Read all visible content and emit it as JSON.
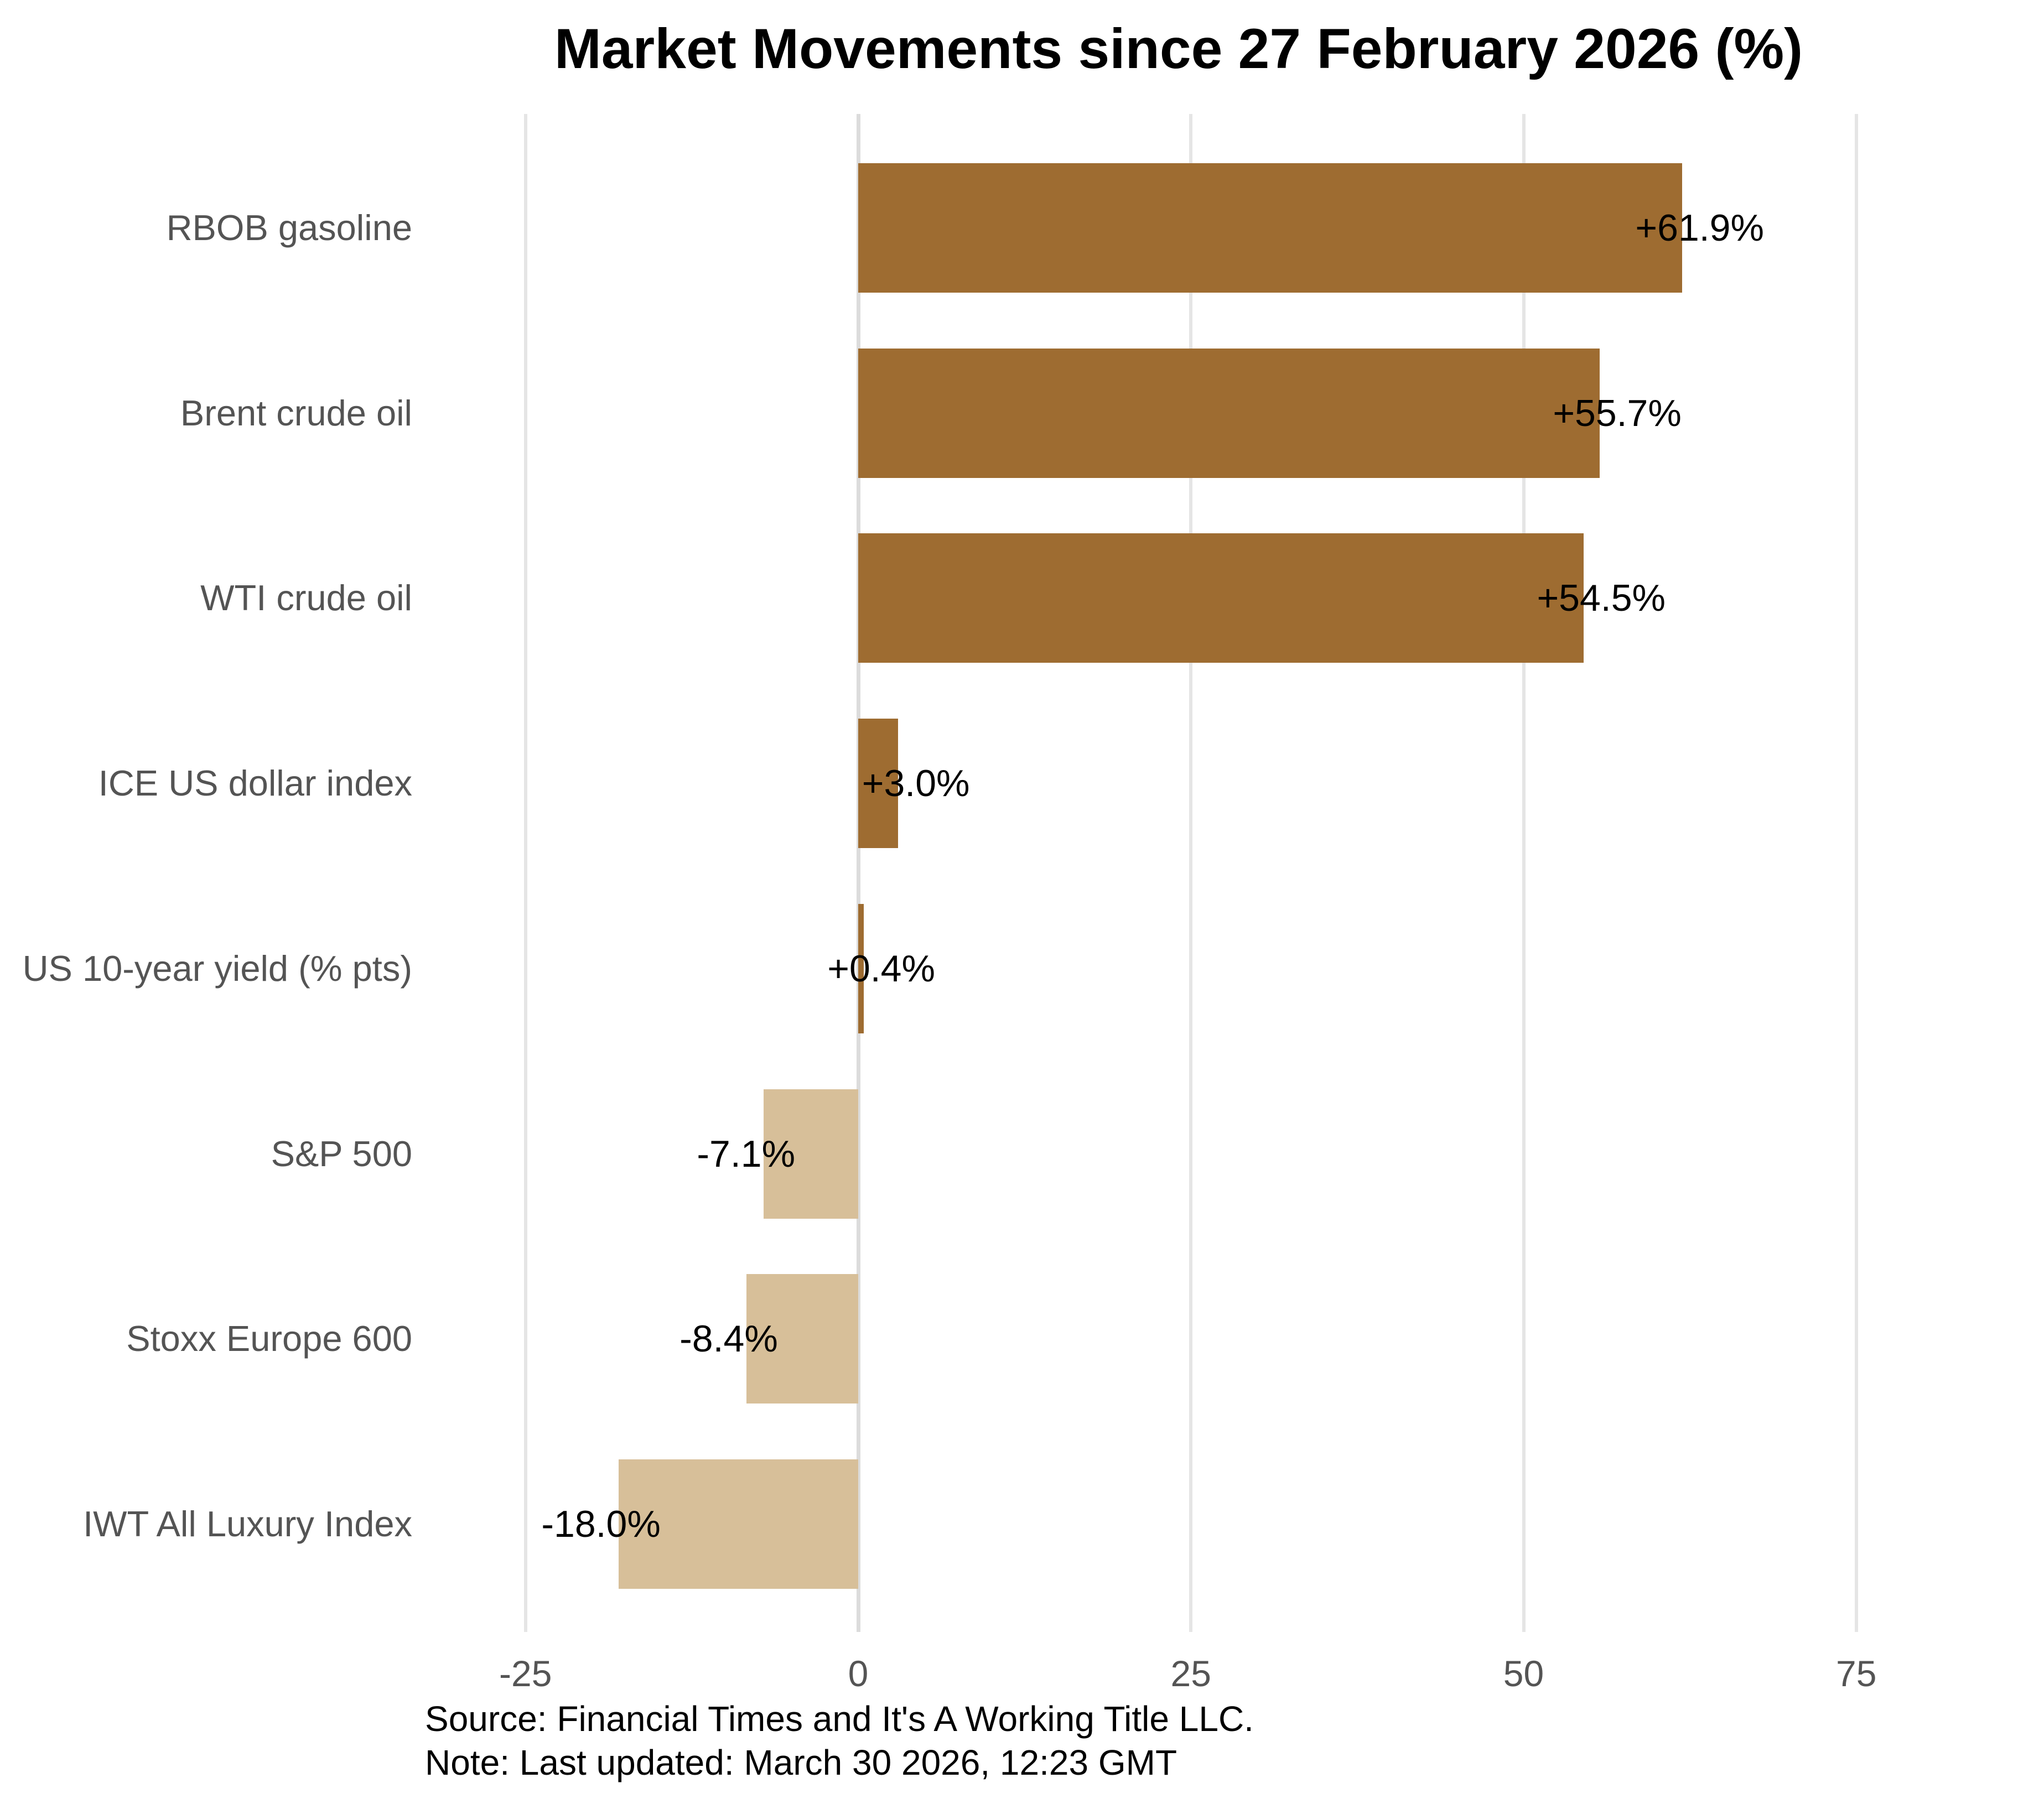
{
  "footer": {
    "source": "Source: Financial Times and It's A Working Title LLC.",
    "note": "Note: Last updated: March 30 2026, 12:23 GMT"
  },
  "chart_data": {
    "type": "bar",
    "orientation": "horizontal",
    "title": "Market Movements since 27 February 2026 (%)",
    "categories": [
      "RBOB gasoline",
      "Brent crude oil",
      "WTI crude oil",
      "ICE US dollar index",
      "US 10-year yield (% pts)",
      "S&P 500",
      "Stoxx Europe 600",
      "IWT All Luxury Index"
    ],
    "values": [
      61.9,
      55.7,
      54.5,
      3.0,
      0.4,
      -7.1,
      -8.4,
      -18.0
    ],
    "value_labels": [
      "+61.9%",
      "+55.7%",
      "+54.5%",
      "+3.0%",
      "+0.4%",
      "-7.1%",
      "-8.4%",
      "-18.0%"
    ],
    "xlabel": "",
    "ylabel": "",
    "x_ticks": [
      -25,
      0,
      25,
      50,
      75
    ],
    "x_tick_labels": [
      "-25",
      "0",
      "25",
      "50",
      "75"
    ],
    "xlim": [
      -33,
      83
    ],
    "grid": true,
    "legend": "none",
    "colors": {
      "positive_bar": "#9e6c31",
      "negative_bar": "#d7bf99",
      "gridline": "#e5e5e5",
      "zero_line": "#dcdcdc",
      "category_label": "#545454",
      "tick_label": "#545454",
      "value_label": "#000000",
      "title": "#000000",
      "background": "#ffffff"
    }
  }
}
